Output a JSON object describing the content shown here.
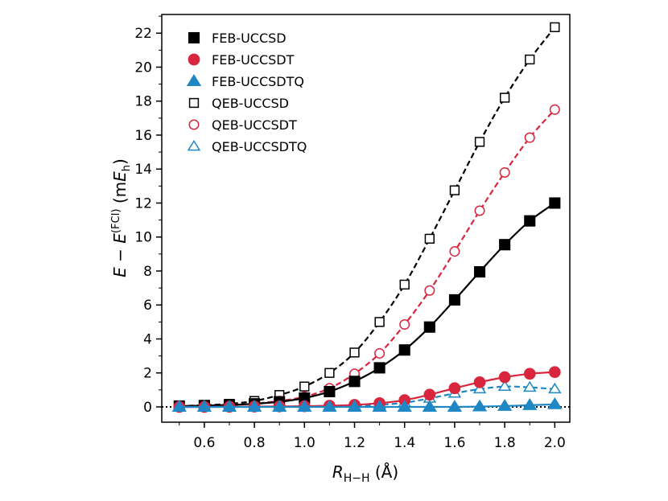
{
  "chart_data": {
    "type": "line",
    "x": [
      0.5,
      0.6,
      0.7,
      0.8,
      0.9,
      1.0,
      1.1,
      1.2,
      1.3,
      1.4,
      1.5,
      1.6,
      1.7,
      1.8,
      1.9,
      2.0
    ],
    "xlim": [
      0.43,
      2.06
    ],
    "ylim": [
      -0.9,
      23.1
    ],
    "xticks": [
      0.6,
      0.8,
      1.0,
      1.2,
      1.4,
      1.6,
      1.8,
      2.0
    ],
    "xtick_labels": [
      "0.6",
      "0.8",
      "1.0",
      "1.2",
      "1.4",
      "1.6",
      "1.8",
      "2.0"
    ],
    "yticks": [
      0,
      2,
      4,
      6,
      8,
      10,
      12,
      14,
      16,
      18,
      20,
      22
    ],
    "ytick_labels": [
      "0",
      "2",
      "4",
      "6",
      "8",
      "10",
      "12",
      "14",
      "16",
      "18",
      "20",
      "22"
    ],
    "xlabel": {
      "main": "R",
      "sub": "H−H",
      "unit": " (Å)"
    },
    "ylabel": {
      "e1": "E",
      "minus": " − ",
      "e2": "E",
      "sup": "(FCI)",
      "unit_open": " (m",
      "unit_e": "E",
      "unit_sub": "h",
      "unit_close": ")"
    },
    "reference_line": {
      "y": 0,
      "style": "dotted"
    },
    "legend_position": "top-left",
    "series": [
      {
        "name": "FEB-UCCSD",
        "color": "#000000",
        "marker": "square",
        "filled": true,
        "line": "solid",
        "values": [
          0.05,
          0.08,
          0.12,
          0.18,
          0.3,
          0.52,
          0.9,
          1.5,
          2.3,
          3.35,
          4.7,
          6.3,
          7.95,
          9.55,
          10.95,
          12.0
        ]
      },
      {
        "name": "FEB-UCCSDT",
        "color": "#d7263d",
        "marker": "circle",
        "filled": true,
        "line": "solid",
        "values": [
          0.0,
          0.0,
          0.01,
          0.02,
          0.03,
          0.04,
          0.07,
          0.12,
          0.22,
          0.4,
          0.72,
          1.1,
          1.45,
          1.75,
          1.95,
          2.05
        ]
      },
      {
        "name": "FEB-UCCSDTQ",
        "color": "#1f88c4",
        "marker": "triangle",
        "filled": true,
        "line": "solid",
        "values": [
          0.0,
          0.0,
          0.0,
          0.0,
          0.0,
          0.0,
          0.0,
          0.0,
          0.0,
          0.0,
          0.0,
          0.0,
          0.02,
          0.05,
          0.1,
          0.15
        ]
      },
      {
        "name": "QEB-UCCSD",
        "color": "#000000",
        "marker": "square",
        "filled": false,
        "line": "dashed",
        "values": [
          0.05,
          0.1,
          0.18,
          0.35,
          0.7,
          1.2,
          2.0,
          3.2,
          5.0,
          7.2,
          9.9,
          12.75,
          15.6,
          18.2,
          20.45,
          22.35
        ]
      },
      {
        "name": "QEB-UCCSDT",
        "color": "#d7263d",
        "marker": "circle",
        "filled": false,
        "line": "dashed",
        "values": [
          0.02,
          0.05,
          0.1,
          0.2,
          0.35,
          0.6,
          1.1,
          1.95,
          3.15,
          4.85,
          6.85,
          9.15,
          11.55,
          13.8,
          15.85,
          17.5
        ]
      },
      {
        "name": "QEB-UCCSDTQ",
        "color": "#1f88c4",
        "marker": "triangle",
        "filled": false,
        "line": "dashed",
        "values": [
          0.0,
          0.0,
          0.0,
          0.0,
          0.01,
          0.02,
          0.04,
          0.07,
          0.12,
          0.25,
          0.5,
          0.8,
          1.05,
          1.2,
          1.15,
          1.05
        ]
      }
    ]
  }
}
